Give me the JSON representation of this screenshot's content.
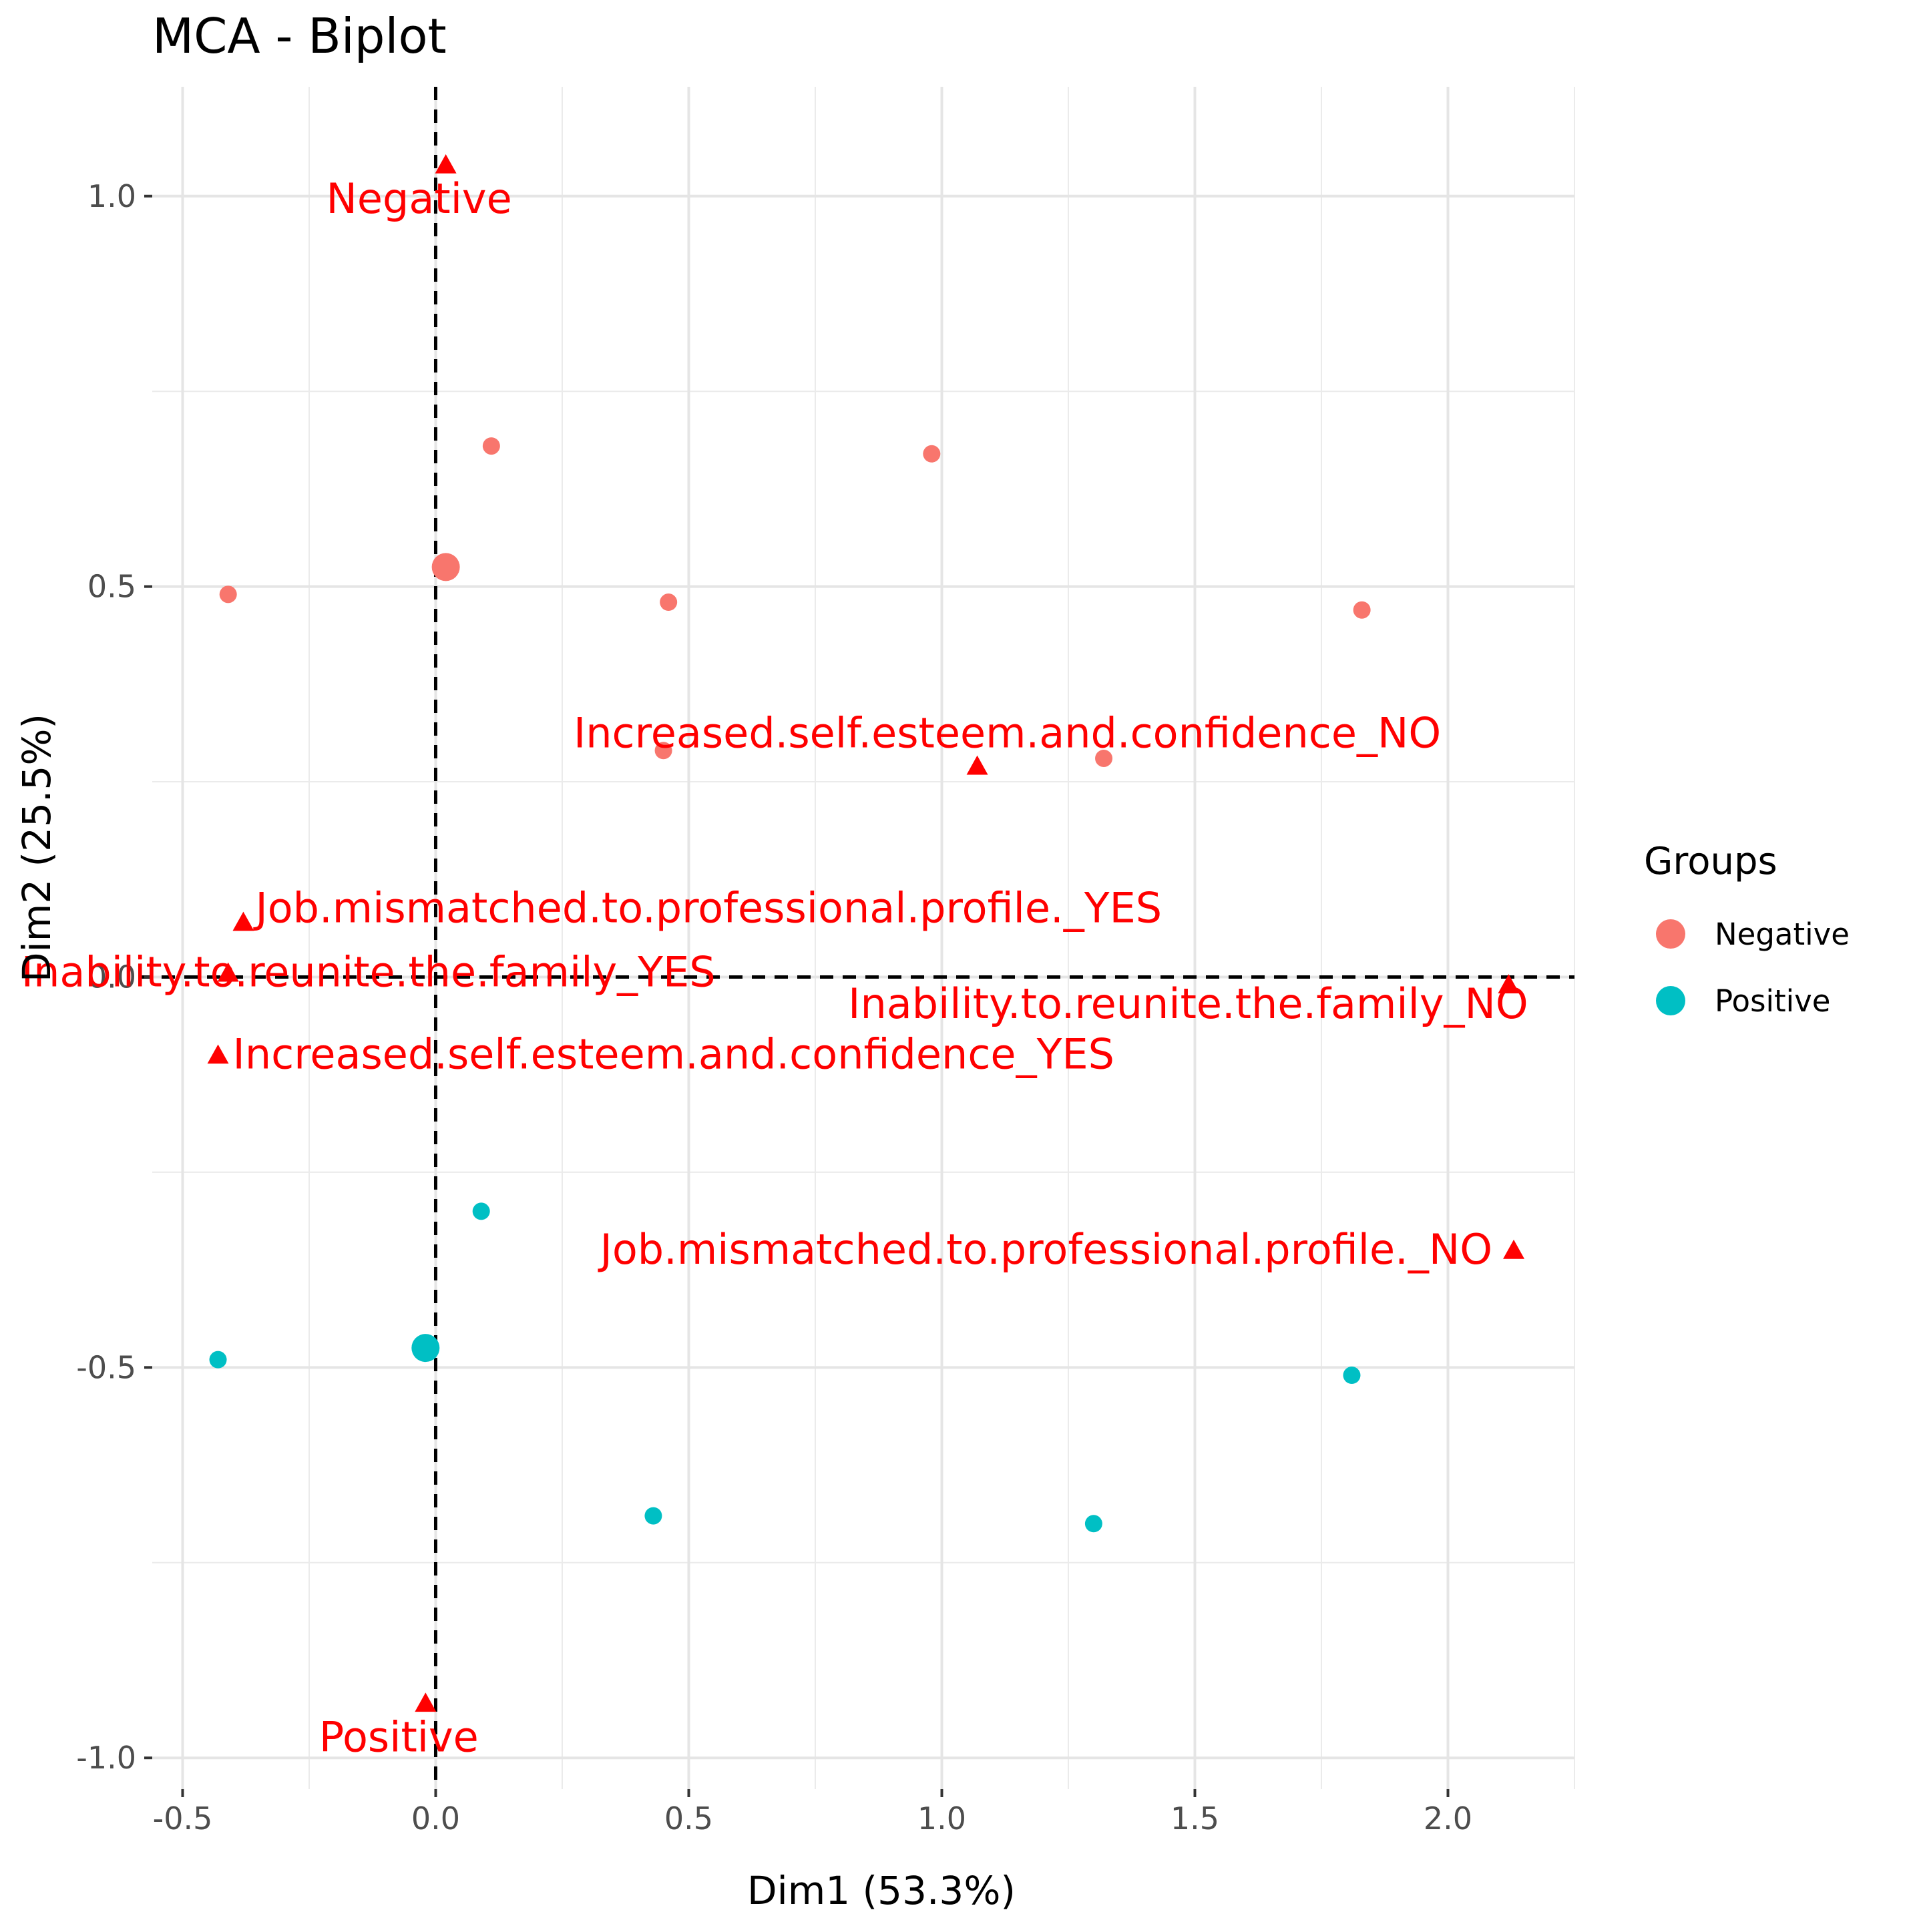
{
  "chart_data": {
    "type": "scatter",
    "title": "MCA - Biplot",
    "xlabel": "Dim1 (53.3%)",
    "ylabel": "Dim2 (25.5%)",
    "xlim": [
      -0.56,
      2.25
    ],
    "ylim": [
      -1.04,
      1.14
    ],
    "x_ticks": [
      -0.5,
      0.0,
      0.5,
      1.0,
      1.5,
      2.0
    ],
    "x_tick_labels": [
      "-0.5",
      "0.0",
      "0.5",
      "1.0",
      "1.5",
      "2.0"
    ],
    "y_ticks": [
      -1.0,
      -0.5,
      0.0,
      0.5,
      1.0
    ],
    "y_tick_labels": [
      "-1.0",
      "-0.5",
      "0.0",
      "0.5",
      "1.0"
    ],
    "grid": true,
    "legend_position": "right",
    "legend": {
      "title": "Groups",
      "entries": [
        {
          "name": "Negative",
          "color": "#F8766D"
        },
        {
          "name": "Positive",
          "color": "#00BFC4"
        }
      ]
    },
    "series": [
      {
        "name": "Negative",
        "color": "#F8766D",
        "points": [
          {
            "x": -0.41,
            "y": 0.49
          },
          {
            "x": 0.11,
            "y": 0.68
          },
          {
            "x": 0.98,
            "y": 0.67
          },
          {
            "x": 0.46,
            "y": 0.48
          },
          {
            "x": 1.83,
            "y": 0.47
          },
          {
            "x": 0.45,
            "y": 0.29
          },
          {
            "x": 1.32,
            "y": 0.28
          }
        ],
        "centroid": {
          "x": 0.02,
          "y": 0.525
        }
      },
      {
        "name": "Positive",
        "color": "#00BFC4",
        "points": [
          {
            "x": 0.09,
            "y": -0.3
          },
          {
            "x": -0.43,
            "y": -0.49
          },
          {
            "x": 1.81,
            "y": -0.51
          },
          {
            "x": 0.43,
            "y": -0.69
          },
          {
            "x": 1.3,
            "y": -0.7
          }
        ],
        "centroid": {
          "x": -0.02,
          "y": -0.475
        }
      }
    ],
    "variable_categories": {
      "color": "#FF0000",
      "points": [
        {
          "label": "Negative",
          "x": 0.02,
          "y": 1.04
        },
        {
          "label": "Positive",
          "x": -0.02,
          "y": -0.93
        },
        {
          "label": "Increased.self.esteem.and.confidence_NO",
          "x": 1.07,
          "y": 0.27
        },
        {
          "label": "Increased.self.esteem.and.confidence_YES",
          "x": -0.43,
          "y": -0.1
        },
        {
          "label": "Job.mismatched.to.professional.profile._YES",
          "x": -0.38,
          "y": 0.07
        },
        {
          "label": "Job.mismatched.to.professional.profile._NO",
          "x": 2.13,
          "y": -0.35
        },
        {
          "label": "Inability.to.reunite.the.family_YES",
          "x": -0.41,
          "y": 0.005
        },
        {
          "label": "Inability.to.reunite.the.family_NO",
          "x": 2.12,
          "y": -0.01
        }
      ]
    }
  }
}
